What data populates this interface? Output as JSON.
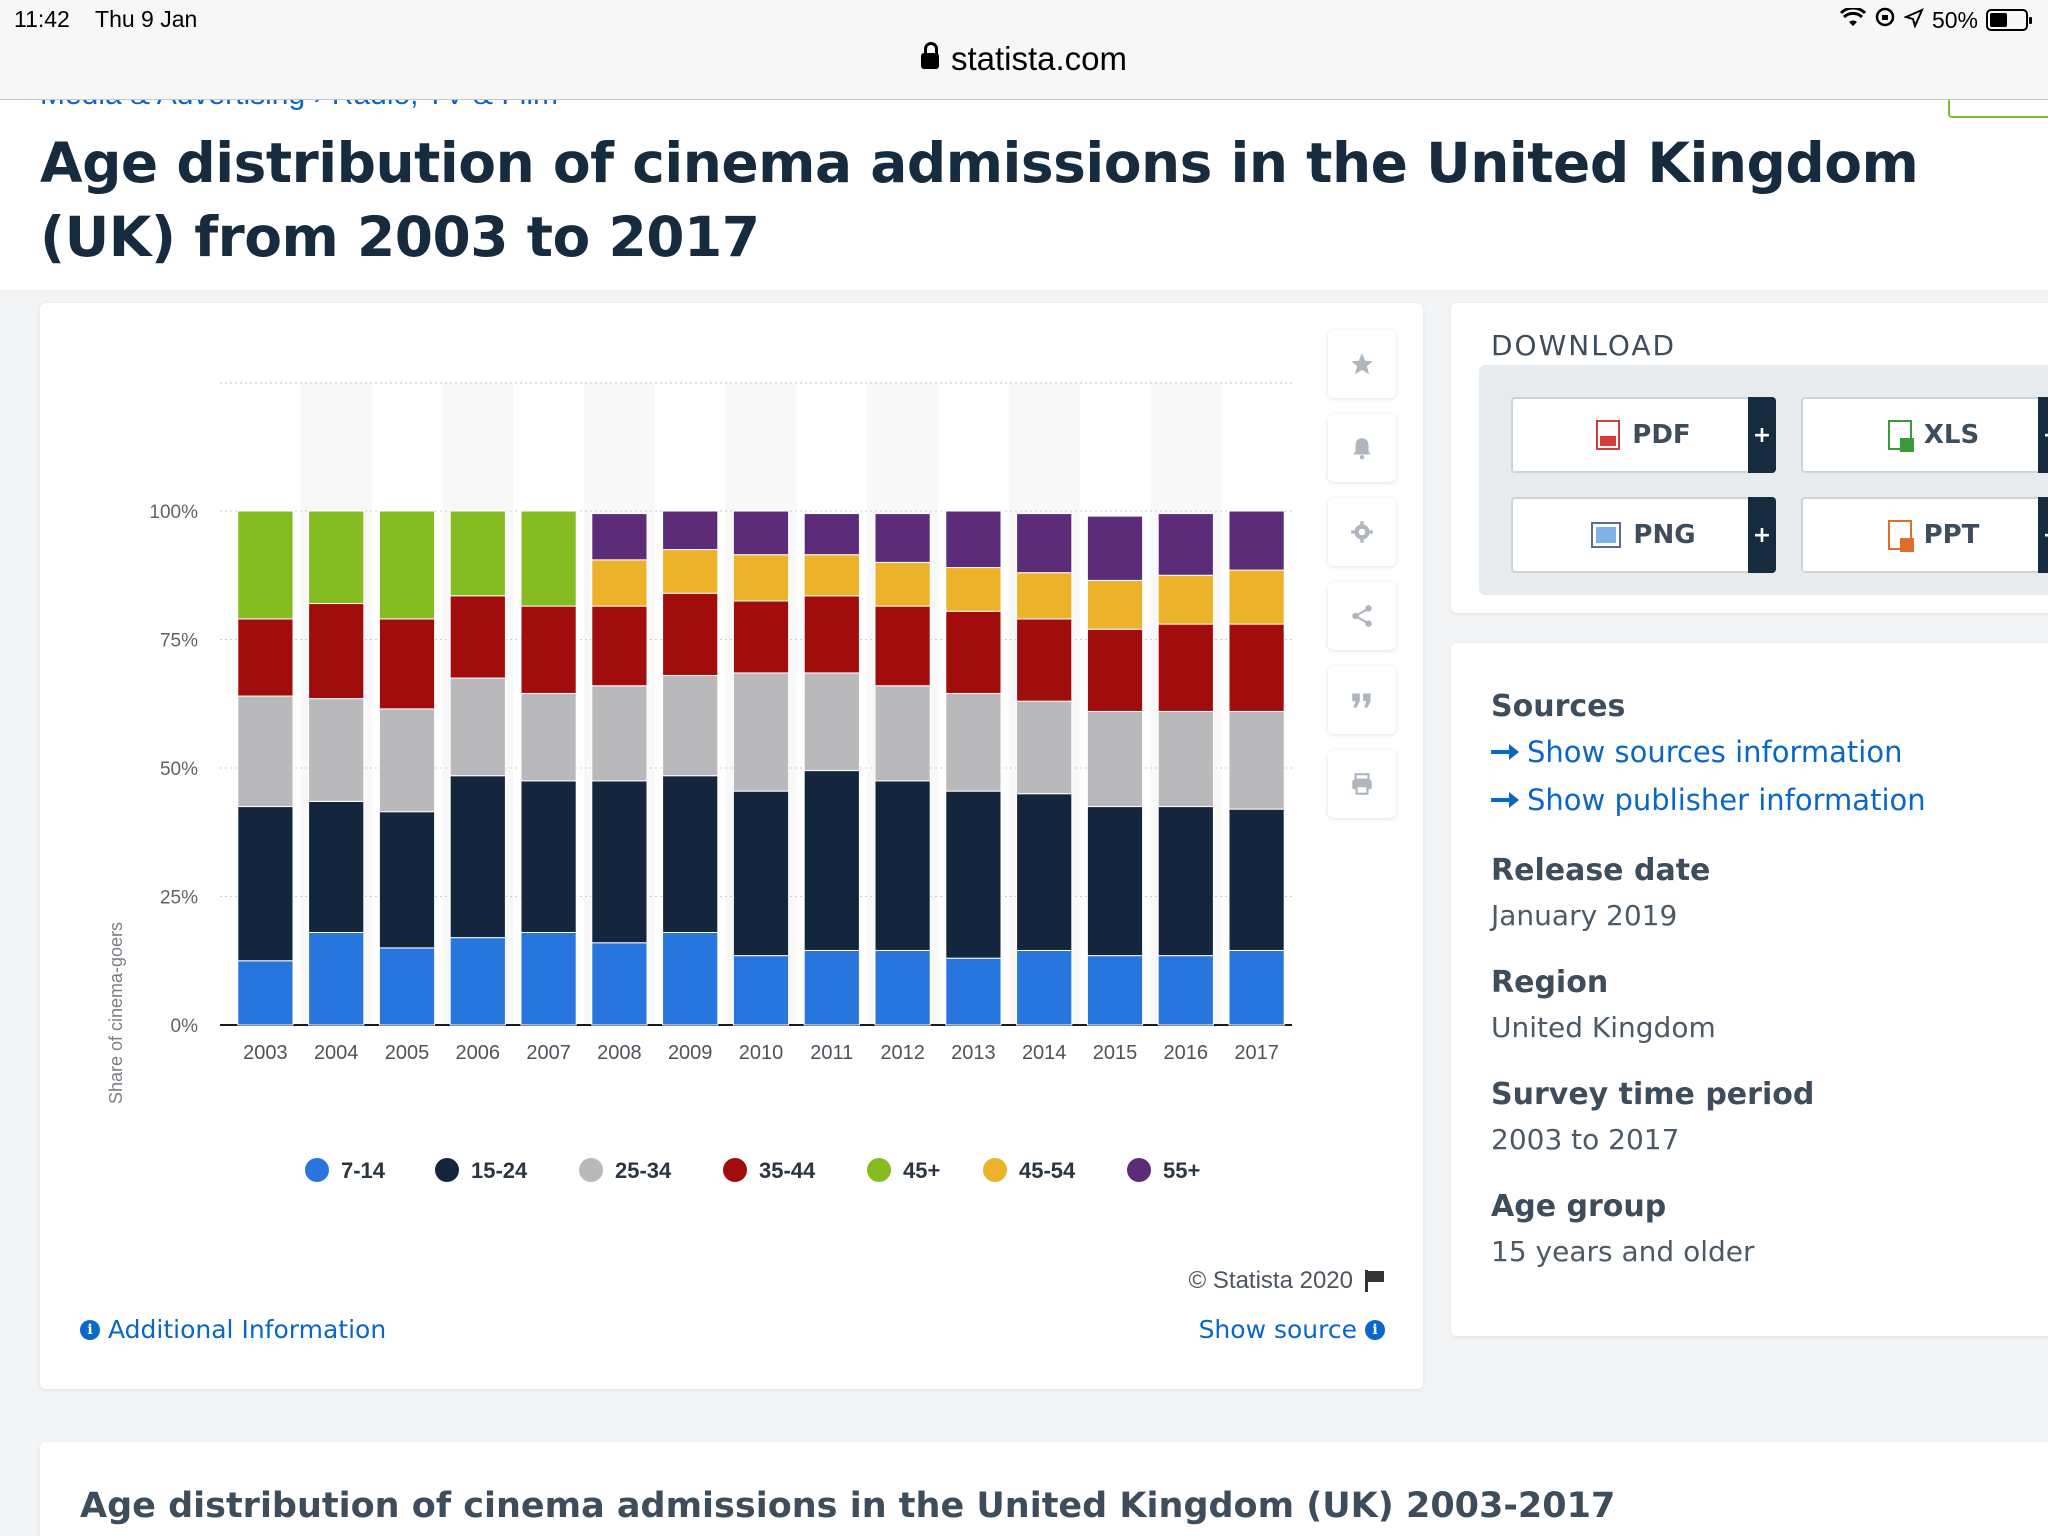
{
  "status_bar": {
    "time": "11:42",
    "date": "Thu 9 Jan",
    "battery": "50%"
  },
  "browser": {
    "url": "statista.com"
  },
  "breadcrumb": "Media & Advertising › Radio, TV & Film",
  "page_title": "Age distribution of cinema admissions in the United Kingdom (UK) from 2003 to 2017",
  "tools": [
    {
      "icon": "star-icon"
    },
    {
      "icon": "bell-icon"
    },
    {
      "icon": "gear-icon"
    },
    {
      "icon": "share-icon"
    },
    {
      "icon": "quote-icon"
    },
    {
      "icon": "print-icon"
    }
  ],
  "chart_footer": {
    "copyright": "© Statista 2020",
    "additional_info": "Additional Information",
    "show_source": "Show source"
  },
  "download": {
    "title": "DOWNLOAD",
    "buttons": [
      {
        "label": "PDF",
        "plus": "+"
      },
      {
        "label": "XLS",
        "plus": "+"
      },
      {
        "label": "PNG",
        "plus": "+"
      },
      {
        "label": "PPT",
        "plus": "+"
      }
    ]
  },
  "meta": {
    "sources_heading": "Sources",
    "sources_link": "Show sources information",
    "publisher_link": "Show publisher information",
    "release_heading": "Release date",
    "release_value": "January 2019",
    "region_heading": "Region",
    "region_value": "United Kingdom",
    "survey_heading": "Survey time period",
    "survey_value": "2003 to 2017",
    "age_heading": "Age group",
    "age_value": "15 years and older"
  },
  "bottom_title": "Age distribution of cinema admissions in the United Kingdom (UK) 2003-2017",
  "chart_data": {
    "type": "bar",
    "stacked": true,
    "ylabel": "Share of cinema-goers",
    "ylim": [
      0,
      100
    ],
    "yticks": [
      "0%",
      "25%",
      "50%",
      "75%",
      "100%"
    ],
    "legend_position": "bottom",
    "categories": [
      "2003",
      "2004",
      "2005",
      "2006",
      "2007",
      "2008",
      "2009",
      "2010",
      "2011",
      "2012",
      "2013",
      "2014",
      "2015",
      "2016",
      "2017"
    ],
    "series": [
      {
        "name": "7-14",
        "color": "#2876dd",
        "values": [
          12.5,
          18,
          15,
          17,
          18,
          16,
          18,
          13.5,
          14.5,
          14.5,
          13,
          14.5,
          13.5,
          13.5,
          14.5
        ]
      },
      {
        "name": "15-24",
        "color": "#13263d",
        "values": [
          30,
          25.5,
          26.5,
          31.5,
          29.5,
          31.5,
          30.5,
          32,
          35,
          33,
          32.5,
          30.5,
          29,
          29,
          27.5
        ]
      },
      {
        "name": "25-34",
        "color": "#b9b9bb",
        "values": [
          21.5,
          20,
          20,
          19,
          17,
          18.5,
          19.5,
          23,
          19,
          18.5,
          19,
          18,
          18.5,
          18.5,
          19
        ]
      },
      {
        "name": "35-44",
        "color": "#a10c0c",
        "values": [
          15,
          18.5,
          17.5,
          16,
          17,
          15.5,
          16,
          14,
          15,
          15.5,
          16,
          16,
          16,
          17,
          17
        ]
      },
      {
        "name": "45+",
        "color": "#84bc21",
        "values": [
          21,
          18,
          21,
          16.5,
          18.5,
          0,
          0,
          0,
          0,
          0,
          0,
          0,
          0,
          0,
          0
        ]
      },
      {
        "name": "45-54",
        "color": "#ecb22a",
        "values": [
          0,
          0,
          0,
          0,
          0,
          9,
          8.5,
          9,
          8,
          8.5,
          8.5,
          9,
          9.5,
          9.5,
          10.5
        ]
      },
      {
        "name": "55+",
        "color": "#5c2c78",
        "values": [
          0,
          0,
          0,
          0,
          0,
          9,
          7.5,
          8.5,
          8,
          9.5,
          11,
          11.5,
          12.5,
          12,
          11.5
        ]
      }
    ]
  }
}
